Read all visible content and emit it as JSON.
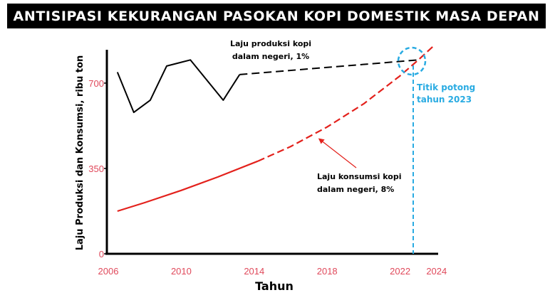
{
  "title": "ANTISIPASI KEKURANGAN PASOKAN KOPI DOMESTIK MASA DEPAN",
  "colors": {
    "tick_text": "#e0495b",
    "production": "#000000",
    "consumption": "#e3211c",
    "intersection": "#29abe2",
    "axis": "#000000"
  },
  "chart_data": {
    "type": "line",
    "title": "ANTISIPASI KEKURANGAN PASOKAN KOPI DOMESTIK MASA DEPAN",
    "xlabel": "Tahun",
    "ylabel": "Laju Produksi dan Konsumsi, ribu ton",
    "xlim": [
      2006,
      2024
    ],
    "ylim": [
      0,
      830
    ],
    "x_ticks": [
      "2006",
      "2010",
      "2014",
      "2018",
      "2022",
      "2024"
    ],
    "y_ticks": [
      "0",
      "350",
      "700"
    ],
    "grid": false,
    "series": [
      {
        "name": "Laju produksi kopi dalam negeri, 1%",
        "kind": "actual",
        "x": [
          2006.5,
          2007.4,
          2008.3,
          2009.2,
          2010.5,
          2012.3,
          2013.2
        ],
        "y": [
          745,
          580,
          630,
          770,
          795,
          630,
          735
        ]
      },
      {
        "name": "Laju produksi kopi dalam negeri, 1%",
        "kind": "projection",
        "x": [
          2013.2,
          2023.0
        ],
        "y": [
          735,
          795
        ]
      },
      {
        "name": "Laju konsumsi kopi dalam negeri, 8%",
        "kind": "actual",
        "x": [
          2006.5,
          2008,
          2010,
          2012,
          2014.2
        ],
        "y": [
          175,
          210,
          260,
          315,
          380
        ]
      },
      {
        "name": "Laju konsumsi kopi dalam negeri, 8%",
        "kind": "projection",
        "x": [
          2014.2,
          2016,
          2018,
          2020,
          2022,
          2023.0,
          2023.8
        ],
        "y": [
          380,
          440,
          520,
          615,
          730,
          795,
          850
        ]
      }
    ],
    "annotations": [
      {
        "text_lines": [
          "Laju produksi kopi",
          "dalam negeri, 1%"
        ]
      },
      {
        "text_lines": [
          "Laju konsumsi kopi",
          "dalam negeri, 8%"
        ]
      },
      {
        "text_lines": [
          "Titik potong",
          "tahun 2023"
        ],
        "x": 2023
      }
    ]
  }
}
